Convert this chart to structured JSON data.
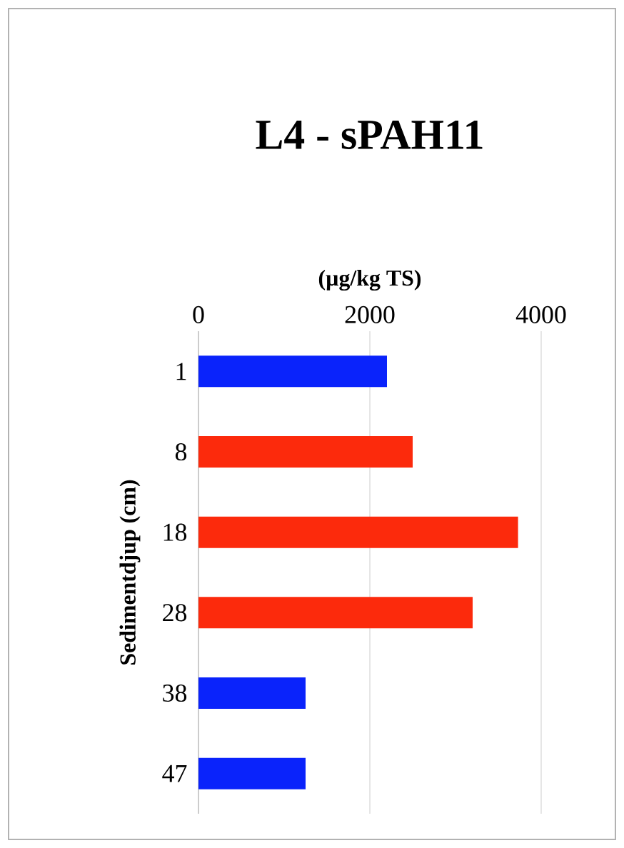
{
  "chart_data": {
    "type": "bar",
    "orientation": "horizontal",
    "title": "L4 - sPAH11",
    "xlabel": "(µg/kg TS)",
    "ylabel": "Sedimentdjup (cm)",
    "categories": [
      "1",
      "8",
      "18",
      "28",
      "38",
      "47"
    ],
    "values": [
      2200,
      2500,
      3730,
      3200,
      1250,
      1250
    ],
    "colors": [
      "#0a23fb",
      "#fc2a0c",
      "#fc2a0c",
      "#fc2a0c",
      "#0a23fb",
      "#0a23fb"
    ],
    "xlim": [
      0,
      4000
    ],
    "xticks": [
      0,
      2000,
      4000
    ],
    "grid": "x"
  }
}
